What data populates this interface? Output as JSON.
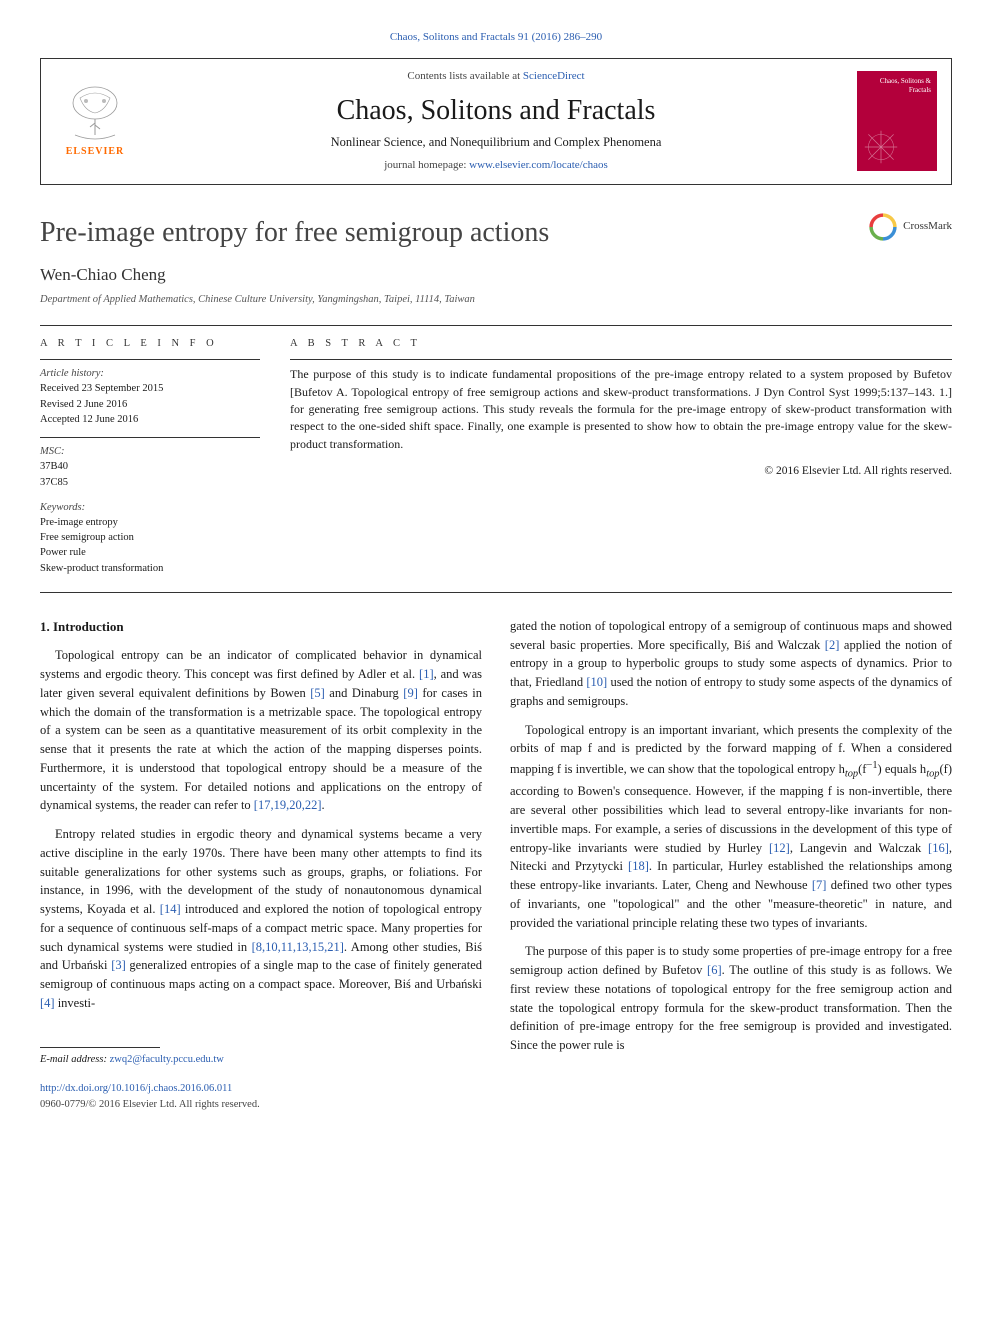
{
  "journal_ref_top": "Chaos, Solitons and Fractals 91 (2016) 286–290",
  "masthead": {
    "contents_prefix": "Contents lists available at ",
    "contents_link": "ScienceDirect",
    "journal_title": "Chaos, Solitons and Fractals",
    "journal_sub": "Nonlinear Science, and Nonequilibrium and Complex Phenomena",
    "homepage_prefix": "journal homepage: ",
    "homepage_link": "www.elsevier.com/locate/chaos",
    "elsevier_label": "ELSEVIER",
    "cover_text": "Chaos,\nSolitons\n& Fractals",
    "colors": {
      "cover_bg": "#b3003b",
      "elsevier_orange": "#ff6a00",
      "link": "#2a5db0",
      "border": "#333333"
    }
  },
  "article": {
    "title": "Pre-image entropy for free semigroup actions",
    "crossmark_label": "CrossMark",
    "author": "Wen-Chiao Cheng",
    "affiliation": "Department of Applied Mathematics, Chinese Culture University, Yangmingshan, Taipei, 11114, Taiwan"
  },
  "article_info": {
    "heading": "a r t i c l e   i n f o",
    "history_label": "Article history:",
    "history": [
      "Received 23 September 2015",
      "Revised 2 June 2016",
      "Accepted 12 June 2016"
    ],
    "msc_label": "MSC:",
    "msc": [
      "37B40",
      "37C85"
    ],
    "keywords_label": "Keywords:",
    "keywords": [
      "Pre-image entropy",
      "Free semigroup action",
      "Power rule",
      "Skew-product transformation"
    ]
  },
  "abstract": {
    "heading": "a b s t r a c t",
    "text": "The purpose of this study is to indicate fundamental propositions of the pre-image entropy related to a system proposed by Bufetov [Bufetov A. Topological entropy of free semigroup actions and skew-product transformations. J Dyn Control Syst 1999;5:137–143. 1.] for generating free semigroup actions. This study reveals the formula for the pre-image entropy of skew-product transformation with respect to the one-sided shift space. Finally, one example is presented to show how to obtain the pre-image entropy value for the skew-product transformation.",
    "copyright": "© 2016 Elsevier Ltd. All rights reserved."
  },
  "body": {
    "section_heading": "1. Introduction",
    "left_paragraphs": [
      {
        "runs": [
          {
            "t": "Topological entropy can be an indicator of complicated behavior in dynamical systems and ergodic theory. This concept was first defined by Adler et al. "
          },
          {
            "t": "[1]",
            "cite": true
          },
          {
            "t": ", and was later given several equivalent definitions by Bowen "
          },
          {
            "t": "[5]",
            "cite": true
          },
          {
            "t": " and Dinaburg "
          },
          {
            "t": "[9]",
            "cite": true
          },
          {
            "t": " for cases in which the domain of the transformation is a metrizable space. The topological entropy of a system can be seen as a quantitative measurement of its orbit complexity in the sense that it presents the rate at which the action of the mapping disperses points. Furthermore, it is understood that topological entropy should be a measure of the uncertainty of the system. For detailed notions and applications on the entropy of dynamical systems, the reader can refer to "
          },
          {
            "t": "[17,19,20,22]",
            "cite": true
          },
          {
            "t": "."
          }
        ]
      },
      {
        "runs": [
          {
            "t": "Entropy related studies in ergodic theory and dynamical systems became a very active discipline in the early 1970s. There have been many other attempts to find its suitable generalizations for other systems such as groups, graphs, or foliations. For instance, in 1996, with the development of the study of nonautonomous dynamical systems, Koyada et al. "
          },
          {
            "t": "[14]",
            "cite": true
          },
          {
            "t": " introduced and explored the notion of topological entropy for a sequence of continuous self-maps of a compact metric space. Many properties for such dynamical systems were studied in "
          },
          {
            "t": "[8,10,11,13,15,21]",
            "cite": true
          },
          {
            "t": ". Among other studies, Biś and Urbański "
          },
          {
            "t": "[3]",
            "cite": true
          },
          {
            "t": " generalized entropies of a single map to the case of finitely generated semigroup of continuous maps acting on a compact space. Moreover, Biś and Urbański "
          },
          {
            "t": "[4]",
            "cite": true
          },
          {
            "t": " investi-"
          }
        ]
      }
    ],
    "right_paragraphs": [
      {
        "noindent": true,
        "runs": [
          {
            "t": "gated the notion of topological entropy of a semigroup of continuous maps and showed several basic properties. More specifically, Biś and Walczak "
          },
          {
            "t": "[2]",
            "cite": true
          },
          {
            "t": " applied the notion of entropy in a group to hyperbolic groups to study some aspects of dynamics. Prior to that, Friedland "
          },
          {
            "t": "[10]",
            "cite": true
          },
          {
            "t": " used the notion of entropy to study some aspects of the dynamics of graphs and semigroups."
          }
        ]
      },
      {
        "runs": [
          {
            "t": "Topological entropy is an important invariant, which presents the complexity of the orbits of map f and is predicted by the forward mapping of f. When a considered mapping f is invertible, we can show that the topological entropy h"
          },
          {
            "t": "top",
            "sub": true
          },
          {
            "t": "(f"
          },
          {
            "t": "−1",
            "sup": true
          },
          {
            "t": ") equals h"
          },
          {
            "t": "top",
            "sub": true
          },
          {
            "t": "(f) according to Bowen's consequence. However, if the mapping f is non-invertible, there are several other possibilities which lead to several entropy-like invariants for non-invertible maps. For example, a series of discussions in the development of this type of entropy-like invariants were studied by Hurley "
          },
          {
            "t": "[12]",
            "cite": true
          },
          {
            "t": ", Langevin and Walczak "
          },
          {
            "t": "[16]",
            "cite": true
          },
          {
            "t": ", Nitecki and Przytycki "
          },
          {
            "t": "[18]",
            "cite": true
          },
          {
            "t": ". In particular, Hurley established the relationships among these entropy-like invariants. Later, Cheng and Newhouse "
          },
          {
            "t": "[7]",
            "cite": true
          },
          {
            "t": " defined two other types of invariants, one \"topological\" and the other \"measure-theoretic\" in nature, and provided the variational principle relating these two types of invariants."
          }
        ]
      },
      {
        "runs": [
          {
            "t": "The purpose of this paper is to study some properties of pre-image entropy for a free semigroup action defined by Bufetov "
          },
          {
            "t": "[6]",
            "cite": true
          },
          {
            "t": ". The outline of this study is as follows. We first review these notations of topological entropy for the free semigroup action and state the topological entropy formula for the skew-product transformation. Then the definition of pre-image entropy for the free semigroup is provided and investigated. Since the power rule is"
          }
        ]
      }
    ]
  },
  "footer": {
    "email_label": "E-mail address: ",
    "email": "zwq2@faculty.pccu.edu.tw",
    "doi": "http://dx.doi.org/10.1016/j.chaos.2016.06.011",
    "issn": "0960-0779/© 2016 Elsevier Ltd. All rights reserved."
  },
  "crossmark_colors": {
    "ring_top": "#e83e3e",
    "ring_right": "#f7c948",
    "ring_bottom": "#3b8fd6",
    "ring_left": "#6ab04c"
  }
}
